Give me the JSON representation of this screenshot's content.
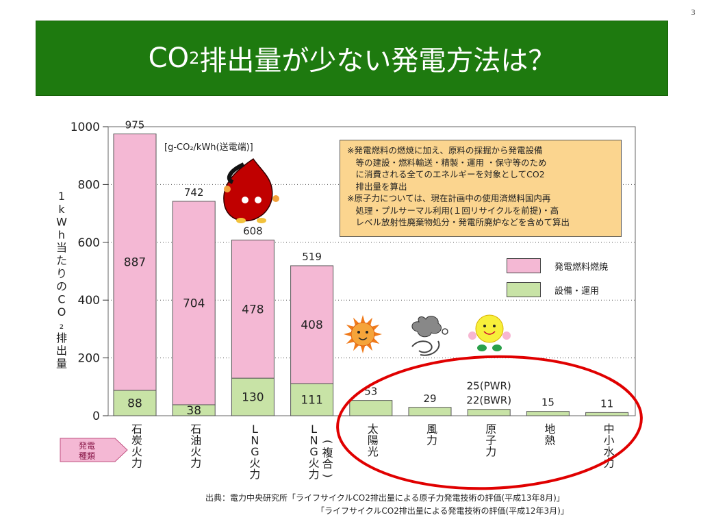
{
  "page_number": "3",
  "title": {
    "prefix": "CO",
    "sub": "2",
    "suffix": "排出量が少ない発電方法は？"
  },
  "chart_data": {
    "type": "bar",
    "unit_label": "[g-CO₂/kWh(送電端)]",
    "ylabel": "1kWh当たりのCO₂排出量",
    "ylim": [
      0,
      1000
    ],
    "yticks": [
      "0",
      "200",
      "400",
      "600",
      "800",
      "1000"
    ],
    "category_axis_tag": "発電種類",
    "categories": [
      "石炭火力",
      "石油火力",
      "LNG火力",
      "LNG火力(複合)",
      "太陽光",
      "風力",
      "原子力",
      "地熱",
      "中小水力"
    ],
    "series": [
      {
        "name": "発電燃料燃焼",
        "color": "#f4b8d4",
        "values": [
          887,
          704,
          478,
          408,
          0,
          0,
          0,
          0,
          0
        ]
      },
      {
        "name": "設備・運用",
        "color": "#c8e3a6",
        "values": [
          88,
          38,
          130,
          111,
          53,
          29,
          22,
          15,
          11
        ]
      }
    ],
    "totals": [
      975,
      742,
      608,
      519,
      53,
      29,
      22,
      15,
      11
    ],
    "top_labels": [
      "975",
      "742",
      "608",
      "519",
      "53",
      "29",
      "22(BWR)",
      "15",
      "11"
    ],
    "combustion_labels": [
      "887",
      "704",
      "478",
      "408"
    ],
    "equipment_labels": [
      "88",
      "38",
      "130",
      "111"
    ],
    "extra_label": "25(PWR)",
    "grid": true,
    "legend_position": "right"
  },
  "callout": [
    "※発電燃料の燃焼に加え、原料の採掘から発電設備",
    "　等の建設・燃料輸送・精製・運用 ・保守等のため",
    "　に消費される全てのエネルギーを対象としてCO2",
    "　排出量を算出",
    "※原子力については、現在計画中の使用済燃料国内再",
    "　処理・プルサーマル利用(１回リサイクルを前提)・高",
    "　レベル放射性廃棄物処分・発電所廃炉などを含めて算出"
  ],
  "source": {
    "line1": "出典：電力中央研究所「ライフサイクルCO2排出量による原子力発電技術の評価(平成13年8月)」",
    "line2": "「ライフサイクルCO2排出量による発電技術の評価(平成12年3月)」"
  },
  "colors": {
    "title_bg": "#1e7a0f",
    "highlight_ellipse": "#e00000"
  },
  "icons": [
    "oil-drop-mascot-icon",
    "sun-mascot-icon",
    "wind-mascot-icon",
    "atom-mascot-icon"
  ]
}
